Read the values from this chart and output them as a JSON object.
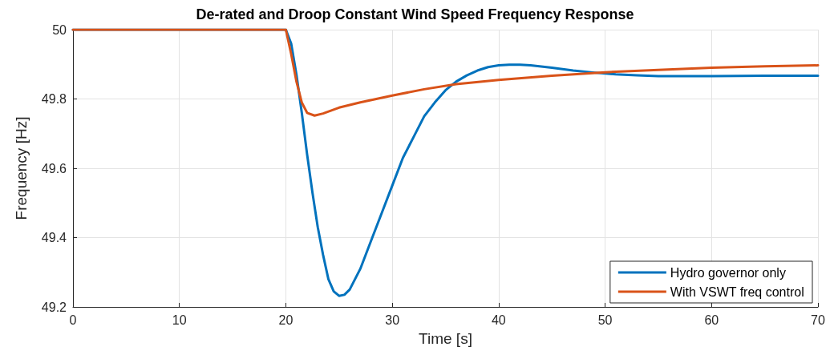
{
  "chart_data": {
    "type": "line",
    "title": "De-rated and Droop Constant Wind Speed Frequency Response",
    "xlabel": "Time [s]",
    "ylabel": "Frequency [Hz]",
    "xlim": [
      0,
      70
    ],
    "xticks": [
      0,
      10,
      20,
      30,
      40,
      50,
      60,
      70
    ],
    "ylim": [
      49.2,
      50
    ],
    "yticks": [
      49.2,
      49.4,
      49.6,
      49.8,
      50
    ],
    "grid": true,
    "legend": "bottom right",
    "marker": "none",
    "line_style": "solid",
    "series": [
      {
        "name": "Hydro governor only",
        "color": "#0072bd",
        "x": [
          0,
          20,
          20.5,
          21,
          21.5,
          22,
          22.5,
          23,
          23.5,
          24,
          24.5,
          25,
          25.5,
          26,
          27,
          28,
          29,
          30,
          31,
          32,
          33,
          34,
          35,
          36,
          37,
          38,
          39,
          40,
          41,
          42,
          43,
          45,
          47,
          49,
          51,
          53,
          55,
          57,
          60,
          65,
          70
        ],
        "values": [
          50,
          50,
          49.96,
          49.87,
          49.76,
          49.64,
          49.53,
          49.43,
          49.35,
          49.28,
          49.245,
          49.232,
          49.235,
          49.25,
          49.31,
          49.39,
          49.47,
          49.55,
          49.63,
          49.69,
          49.75,
          49.79,
          49.825,
          49.85,
          49.868,
          49.882,
          49.892,
          49.897,
          49.899,
          49.899,
          49.897,
          49.89,
          49.882,
          49.876,
          49.871,
          49.868,
          49.866,
          49.866,
          49.866,
          49.867,
          49.867
        ]
      },
      {
        "name": "With VSWT freq control",
        "color": "#d95319",
        "x": [
          0,
          20,
          20.5,
          21,
          21.5,
          22,
          22.7,
          23.5,
          25,
          27,
          30,
          33,
          36,
          40,
          45,
          50,
          55,
          60,
          65,
          70
        ],
        "values": [
          50,
          50,
          49.93,
          49.85,
          49.79,
          49.76,
          49.752,
          49.758,
          49.775,
          49.79,
          49.81,
          49.828,
          49.843,
          49.855,
          49.867,
          49.877,
          49.884,
          49.89,
          49.894,
          49.897
        ]
      }
    ]
  }
}
